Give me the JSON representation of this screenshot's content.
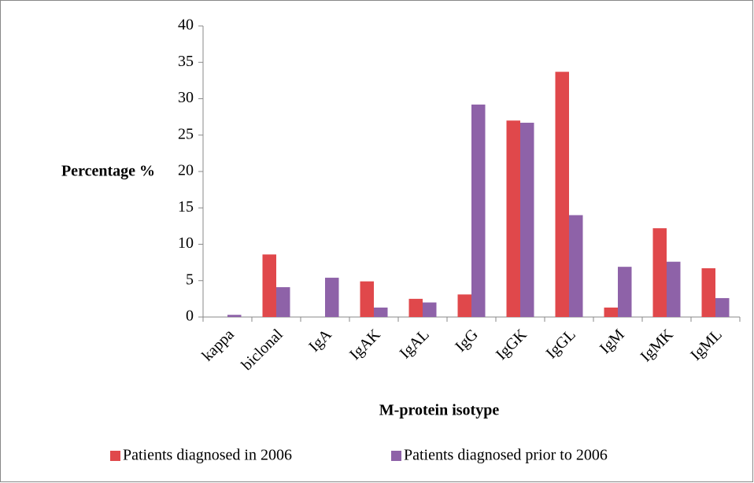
{
  "chart_data": {
    "type": "bar",
    "y_label": "Percentage %",
    "x_label": "M-protein isotype",
    "categories": [
      "kappa",
      "biclonal",
      "IgA",
      "IgAK",
      "IgAL",
      "IgG",
      "IgGK",
      "IgGL",
      "IgM",
      "IgMK",
      "IgML"
    ],
    "series": [
      {
        "name": "Patients diagnosed in 2006",
        "color": "#e0484b",
        "values": [
          0,
          8.6,
          0,
          4.9,
          2.5,
          3.1,
          27.0,
          33.7,
          1.3,
          12.2,
          6.7
        ]
      },
      {
        "name": "Patients diagnosed prior to 2006",
        "color": "#8e62a8",
        "values": [
          0.3,
          4.1,
          5.4,
          1.3,
          2.0,
          29.2,
          26.7,
          14.0,
          6.9,
          7.6,
          2.6
        ]
      }
    ],
    "ylim": [
      0,
      40
    ],
    "yticks": [
      0,
      5,
      10,
      15,
      20,
      25,
      30,
      35,
      40
    ],
    "grid": false,
    "legend": "bottom"
  }
}
